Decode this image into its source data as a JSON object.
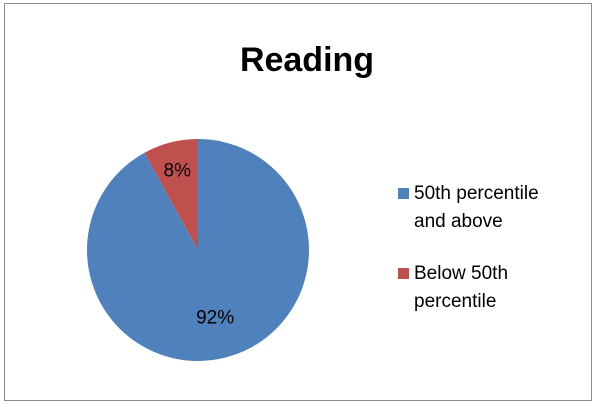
{
  "chart_data": {
    "type": "pie",
    "title": "Reading",
    "categories": [
      "50th percentile and above",
      "Below 50th percentile"
    ],
    "values": [
      92,
      8
    ],
    "data_labels": [
      "92%",
      "8%"
    ],
    "colors": [
      "#4f81bd",
      "#c0504d"
    ],
    "legend_position": "right"
  },
  "legend": {
    "item0_line1": "50th percentile",
    "item0_line2": "and above",
    "item1_line1": "Below 50th",
    "item1_line2": "percentile"
  }
}
